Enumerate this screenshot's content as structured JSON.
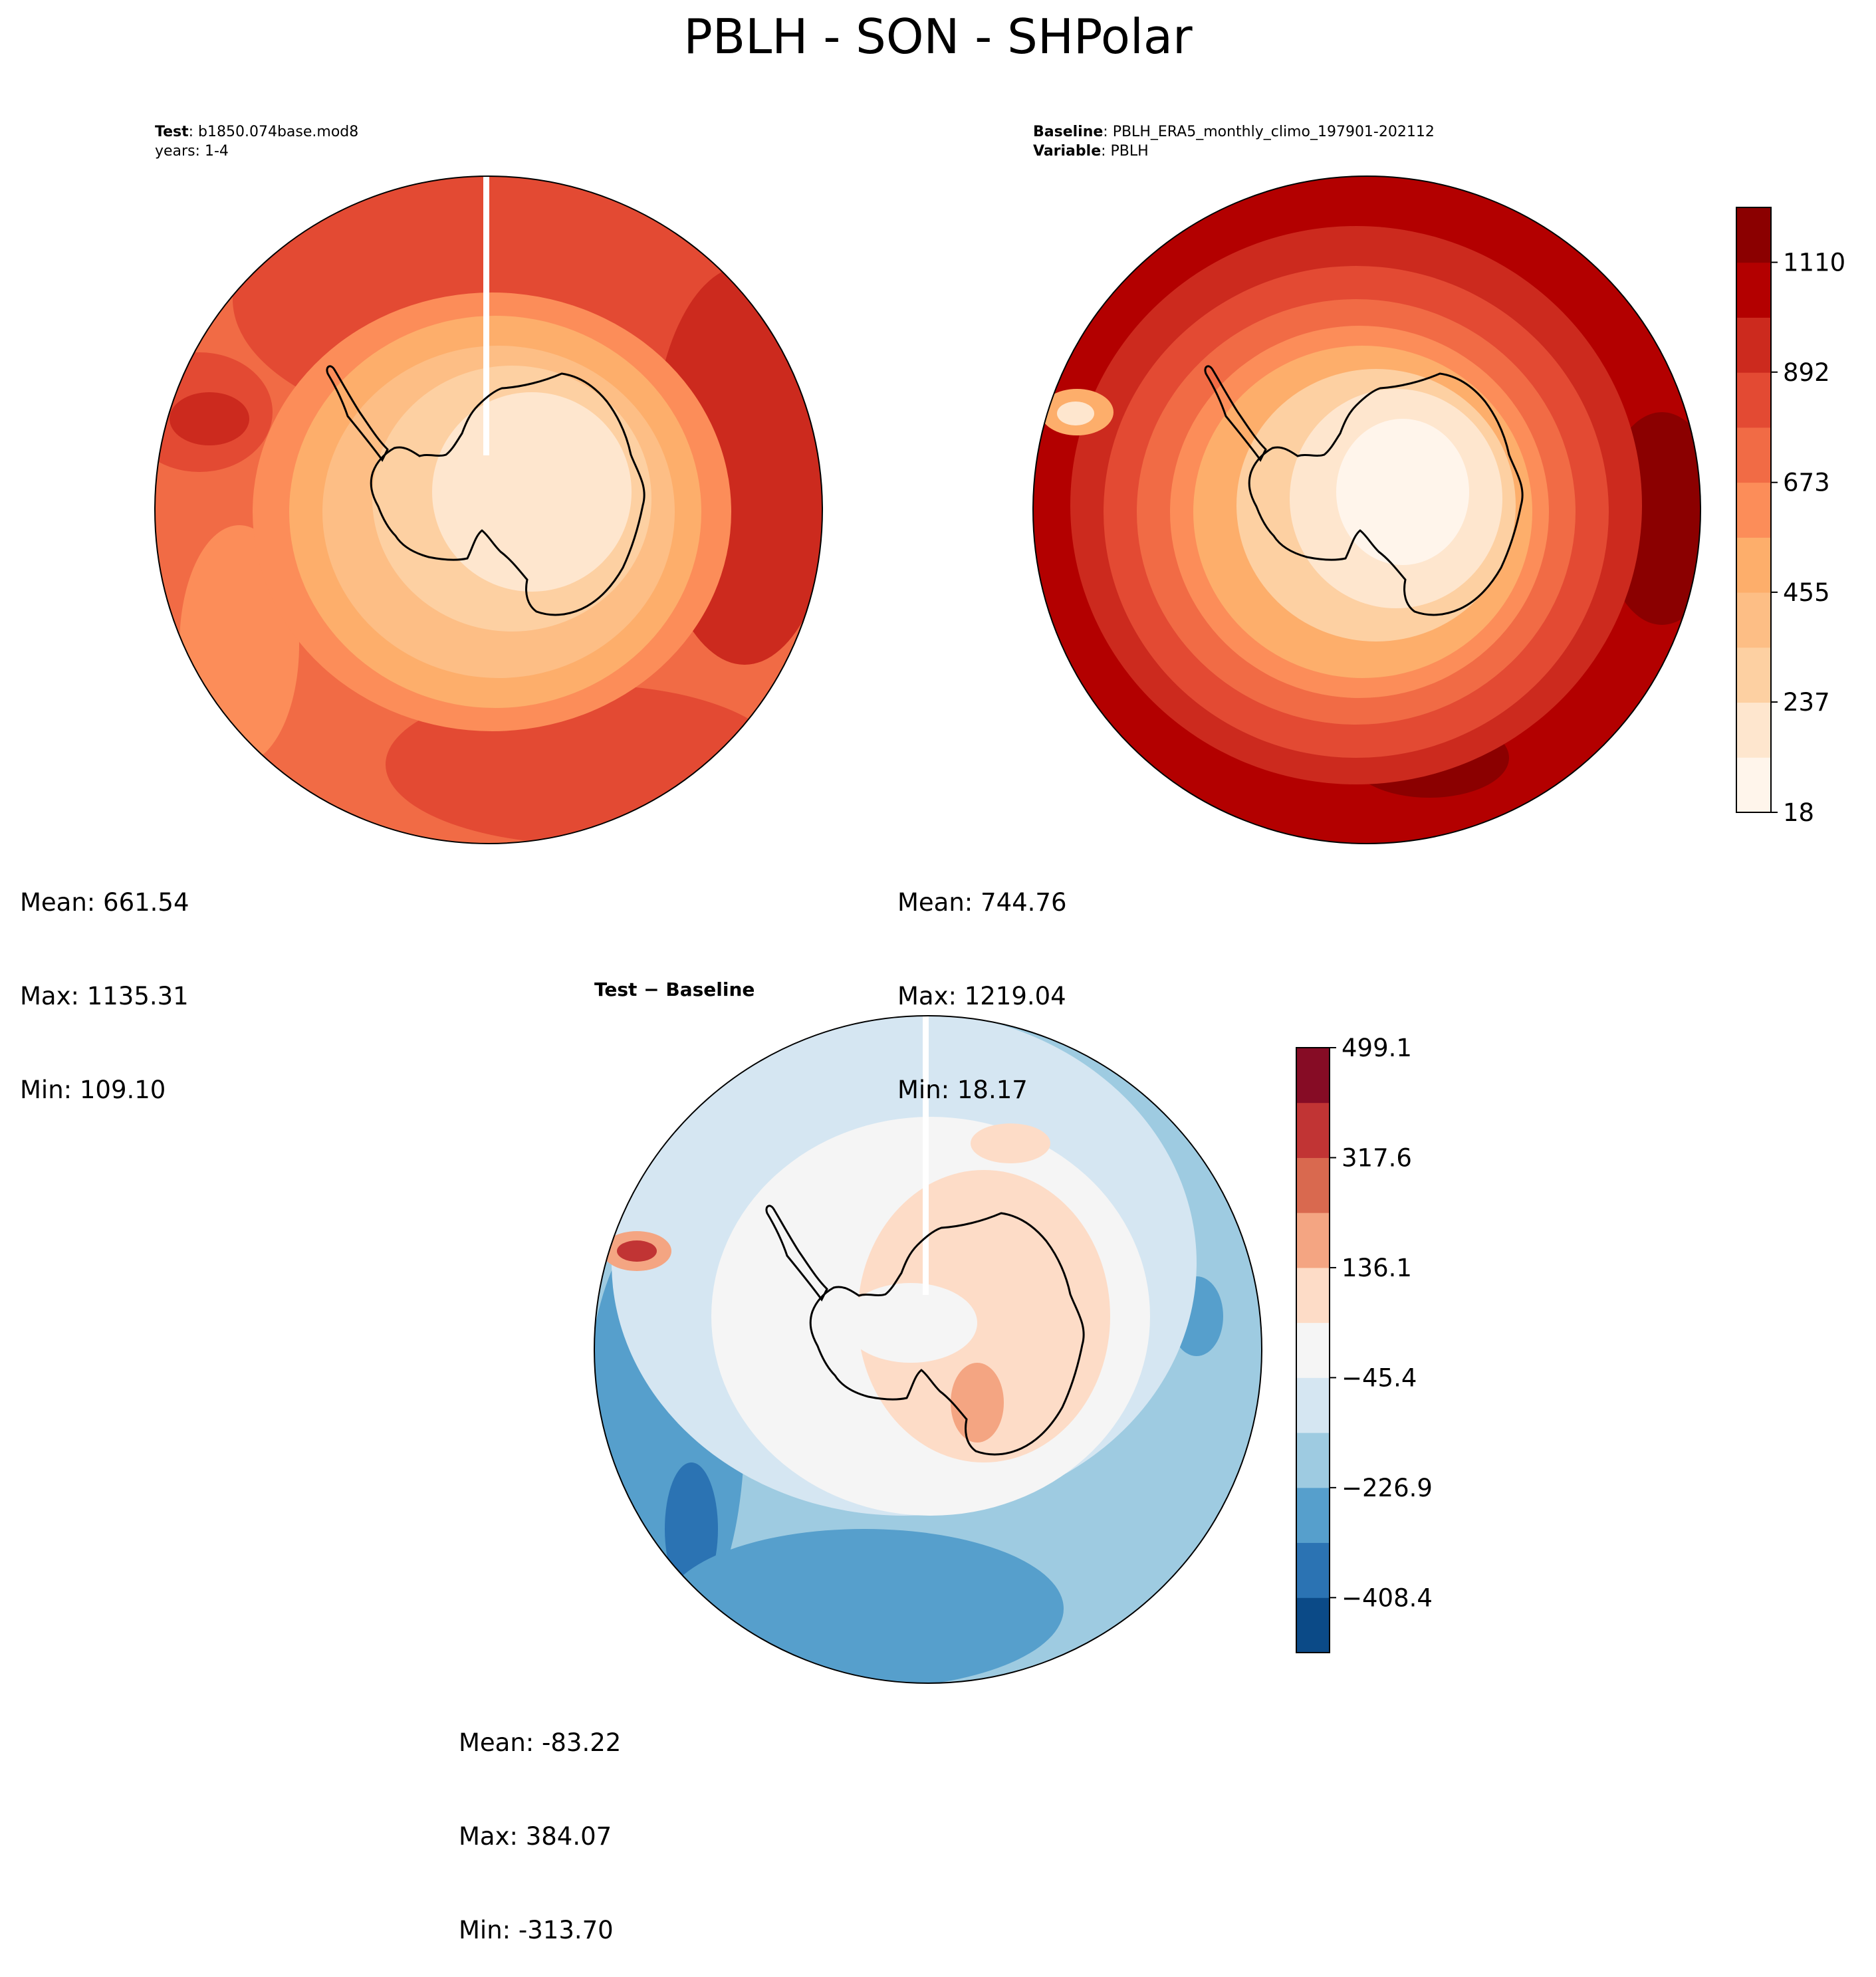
{
  "figure": {
    "title": "PBLH - SON - SHPolar"
  },
  "colors": {
    "sequential": [
      "#fff5eb",
      "#fee6ce",
      "#fdd0a2",
      "#fdbe85",
      "#fdae6b",
      "#fc8d59",
      "#f16b45",
      "#e34a33",
      "#cc2a1e",
      "#b30000",
      "#8b0000"
    ],
    "diverging": [
      "#0b4a87",
      "#2b73b3",
      "#569fcc",
      "#9ecbe1",
      "#d5e6f2",
      "#f5f5f5",
      "#fddcc7",
      "#f4a582",
      "#d9694f",
      "#c13434",
      "#860c25"
    ]
  },
  "panels": [
    {
      "id": "test",
      "header": [
        {
          "bold": "Test",
          "rest": ": b1850.074base.mod8"
        },
        {
          "bold": "",
          "rest": "years: 1-4"
        }
      ],
      "stats": {
        "mean": "Mean: 661.54",
        "max": "Max: 1135.31",
        "min": "Min: 109.10"
      }
    },
    {
      "id": "baseline",
      "header": [
        {
          "bold": "Baseline",
          "rest": ": PBLH_ERA5_monthly_climo_197901-202112"
        },
        {
          "bold": "Variable",
          "rest": ": PBLH"
        }
      ],
      "stats": {
        "mean": "Mean: 744.76",
        "max": "Max: 1219.04",
        "min": "Min: 18.17"
      }
    },
    {
      "id": "diff",
      "header": [
        {
          "bold": "Test − Baseline",
          "rest": ""
        }
      ],
      "stats": {
        "mean": "Mean: -83.22",
        "max": "Max: 384.07",
        "min": "Min: -313.70"
      }
    }
  ],
  "colorbars": {
    "abs": {
      "min": 18,
      "max": 1219,
      "ticks": [
        "18",
        "237",
        "455",
        "673",
        "892",
        "1110"
      ],
      "tick_values": [
        18,
        237,
        455,
        673,
        892,
        1110
      ]
    },
    "diff": {
      "min": -499.1,
      "max": 499.1,
      "ticks": [
        "−408.4",
        "−226.9",
        "−45.4",
        "136.1",
        "317.6",
        "499.1"
      ],
      "tick_values": [
        -408.4,
        -226.9,
        -45.4,
        136.1,
        317.6,
        499.1
      ]
    }
  },
  "chart_data": {
    "type": "heatmap",
    "title": "PBLH - SON - SHPolar",
    "variable": "PBLH",
    "season": "SON",
    "region": "SHPolar",
    "panels": [
      {
        "name": "Test",
        "case": "b1850.074base.mod8",
        "years": "1-4",
        "mean": 661.54,
        "max": 1135.31,
        "min": 109.1
      },
      {
        "name": "Baseline",
        "case": "PBLH_ERA5_monthly_climo_197901-202112",
        "mean": 744.76,
        "max": 1219.04,
        "min": 18.17
      },
      {
        "name": "Test − Baseline",
        "mean": -83.22,
        "max": 384.07,
        "min": -313.7
      }
    ],
    "colorbar_abs": {
      "range": [
        18,
        1219
      ],
      "ticks": [
        18,
        237,
        455,
        673,
        892,
        1110
      ]
    },
    "colorbar_diff": {
      "range": [
        -499.1,
        499.1
      ],
      "ticks": [
        -408.4,
        -226.9,
        -45.4,
        136.1,
        317.6,
        499.1
      ]
    }
  }
}
